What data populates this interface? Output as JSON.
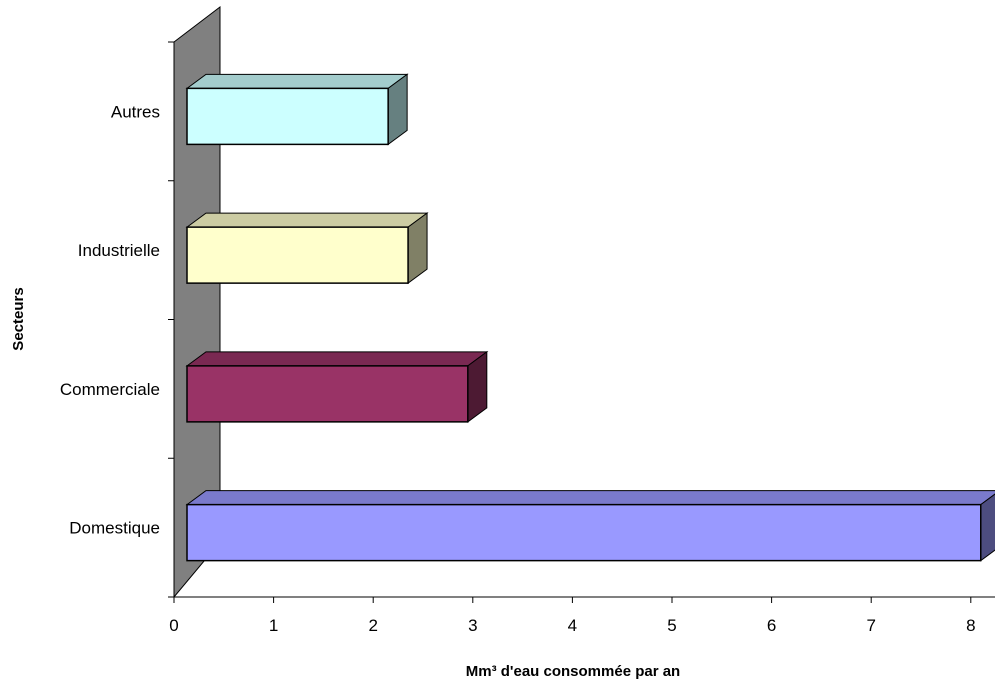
{
  "chart_data": {
    "type": "bar",
    "orientation": "horizontal",
    "three_d": true,
    "categories": [
      "Domestique",
      "Commerciale",
      "Industrielle",
      "Autres"
    ],
    "series": [
      {
        "values": [
          8.1,
          2.95,
          2.35,
          2.15
        ]
      }
    ],
    "bar_colors": [
      "#9999FF",
      "#993366",
      "#FFFFCC",
      "#CCFFFF"
    ],
    "xlabel": "Mm³ d'eau consommée par an",
    "ylabel": "Secteurs",
    "xlim": [
      0,
      8
    ],
    "x_ticks": [
      "0",
      "1",
      "2",
      "3",
      "4",
      "5",
      "6",
      "7",
      "8"
    ],
    "grid": false,
    "legend": "none",
    "wall_color": "#808080"
  }
}
